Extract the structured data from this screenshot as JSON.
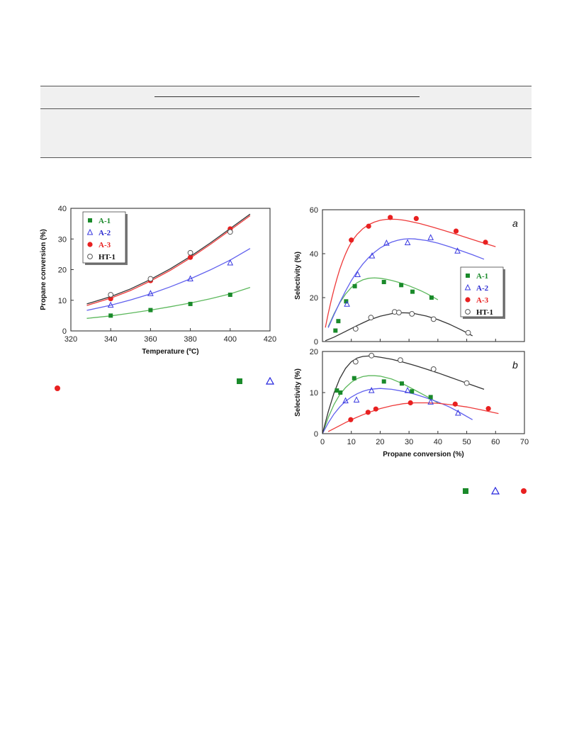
{
  "chart_data": [
    {
      "id": "conv-vs-temp",
      "type": "scatter",
      "xlabel": "Temperature (ºC)",
      "ylabel": "Propane conversion (%)",
      "xlim": [
        320,
        420
      ],
      "ylim": [
        0,
        40
      ],
      "xticks": [
        320,
        340,
        360,
        380,
        400,
        420
      ],
      "yticks": [
        0,
        10,
        20,
        30,
        40
      ],
      "legend_position": "top-left",
      "grid": false,
      "series": [
        {
          "name": "A-1",
          "color": "#1a8a2a",
          "marker": "square",
          "x": [
            340,
            360,
            380,
            400
          ],
          "y": [
            5,
            6.8,
            8.8,
            11.8
          ],
          "fit": {
            "x": [
              328,
              340,
              350,
              360,
              370,
              380,
              390,
              400,
              410
            ],
            "y": [
              4.1,
              4.9,
              5.8,
              6.8,
              7.9,
              9.1,
              10.5,
              12.1,
              14.2
            ]
          }
        },
        {
          "name": "A-2",
          "color": "#3a3ae0",
          "marker": "triangle-open",
          "x": [
            340,
            360,
            380,
            400
          ],
          "y": [
            8.4,
            12.2,
            17,
            22.2
          ],
          "fit": {
            "x": [
              328,
              340,
              350,
              360,
              370,
              380,
              390,
              400,
              410
            ],
            "y": [
              6.7,
              8.4,
              10.1,
              12.1,
              14.4,
              17.0,
              19.9,
              23.1,
              26.9
            ]
          }
        },
        {
          "name": "A-3",
          "color": "#e82020",
          "marker": "circle-filled",
          "x": [
            340,
            360,
            380,
            400
          ],
          "y": [
            10.5,
            16.4,
            24,
            33.3
          ],
          "fit": {
            "x": [
              328,
              340,
              350,
              360,
              370,
              380,
              390,
              400,
              410
            ],
            "y": [
              8.3,
              10.7,
              13.2,
              16.3,
              19.8,
              23.8,
              28.2,
              32.9,
              37.6
            ]
          }
        },
        {
          "name": "HT-1",
          "color": "#555555",
          "marker": "circle-open",
          "x": [
            340,
            360,
            380,
            400
          ],
          "y": [
            11.8,
            17,
            25.5,
            32.3
          ],
          "fit": {
            "x": [
              328,
              340,
              350,
              360,
              370,
              380,
              390,
              400,
              410
            ],
            "y": [
              8.8,
              11.2,
              13.7,
              16.8,
              20.3,
              24.3,
              28.7,
              33.4,
              38.1
            ]
          }
        }
      ]
    },
    {
      "id": "selectivity-a",
      "type": "scatter",
      "panel_label": "a",
      "xlabel": "",
      "ylabel": "Selectivity (%)",
      "xlim": [
        0,
        70
      ],
      "ylim": [
        0,
        60
      ],
      "yticks": [
        0,
        20,
        40,
        60
      ],
      "legend_position": "right",
      "grid": false,
      "series": [
        {
          "name": "A-1",
          "color": "#1a8a2a",
          "marker": "square",
          "x": [
            4.5,
            5.5,
            8.2,
            11.2,
            21.3,
            27.3,
            31.2,
            37.8
          ],
          "y": [
            5,
            9.3,
            18.3,
            25.2,
            27.1,
            25.7,
            22.7,
            20
          ],
          "fit": {
            "x": [
              2,
              4,
              6,
              8,
              10,
              12,
              14,
              16,
              18,
              20,
              22,
              24,
              26,
              28,
              30,
              32,
              34,
              36,
              38,
              40
            ],
            "y": [
              6.7,
              12.6,
              17.6,
              21.6,
              24.6,
              26.8,
              28.1,
              28.8,
              29,
              28.8,
              28.4,
              27.8,
              27.1,
              26.3,
              25.4,
              24.3,
              23.2,
              21.9,
              20.5,
              19
            ]
          }
        },
        {
          "name": "A-2",
          "color": "#3a3ae0",
          "marker": "triangle-open",
          "x": [
            8.5,
            12.2,
            17.2,
            22.2,
            29.5,
            37.5,
            46.8
          ],
          "y": [
            17,
            30.5,
            39,
            44.8,
            45,
            47.3,
            41.2
          ],
          "fit": {
            "x": [
              2,
              4,
              6,
              8,
              10,
              12,
              14,
              16,
              18,
              20,
              22,
              24,
              26,
              28,
              30,
              32,
              36,
              40,
              44,
              48,
              52,
              56
            ],
            "y": [
              6.3,
              12.2,
              17.8,
              23,
              27.7,
              31.8,
              35.3,
              38.2,
              40.6,
              42.6,
              44.1,
              45.3,
              46.1,
              46.6,
              46.8,
              46.7,
              46,
              44.8,
              43.2,
              41.4,
              39.5,
              37.5
            ]
          }
        },
        {
          "name": "A-3",
          "color": "#e82020",
          "marker": "circle-filled",
          "x": [
            10,
            16,
            23.5,
            32.5,
            46.3,
            56.5
          ],
          "y": [
            46.2,
            52.5,
            56.5,
            56,
            50.3,
            45.2
          ],
          "fit": {
            "x": [
              1,
              2,
              3,
              4,
              5,
              6,
              7,
              8,
              9,
              10,
              11,
              12,
              14,
              16,
              18,
              20,
              22,
              24,
              26,
              28,
              30,
              34,
              38,
              42,
              46,
              50,
              54,
              58,
              60
            ],
            "y": [
              6.4,
              12.7,
              18.5,
              23.8,
              28.6,
              32.9,
              36.6,
              39.9,
              42.7,
              45.1,
              47.1,
              48.8,
              51.4,
              53.2,
              54.4,
              55.2,
              55.6,
              55.7,
              55.6,
              55.3,
              54.8,
              53.6,
              52.2,
              50.6,
              49,
              47.3,
              45.6,
              44,
              43.2
            ]
          }
        },
        {
          "name": "HT-1",
          "color": "#555555",
          "marker": "circle-open",
          "x": [
            11.5,
            16.8,
            25,
            26.5,
            31,
            38.5,
            50.5
          ],
          "y": [
            5.8,
            10.9,
            13.5,
            13.2,
            12.6,
            10.2,
            4
          ],
          "fit": {
            "x": [
              1,
              4,
              8,
              12,
              16,
              20,
              24,
              26,
              28,
              30,
              32,
              36,
              40,
              44,
              48,
              50,
              52
            ],
            "y": [
              0.4,
              2,
              4.6,
              7.3,
              9.7,
              11.5,
              12.7,
              13,
              13.1,
              13,
              12.7,
              11.6,
              10,
              7.9,
              5.4,
              4,
              2.6
            ]
          }
        }
      ]
    },
    {
      "id": "selectivity-b",
      "type": "scatter",
      "panel_label": "b",
      "xlabel": "Propane conversion (%)",
      "ylabel": "Selectivity (%)",
      "xlim": [
        0,
        70
      ],
      "ylim": [
        0,
        20
      ],
      "xticks": [
        0,
        10,
        20,
        30,
        40,
        50,
        60,
        70
      ],
      "yticks": [
        0,
        10,
        20
      ],
      "grid": false,
      "series": [
        {
          "name": "A-1",
          "color": "#1a8a2a",
          "marker": "square",
          "x": [
            5,
            6.2,
            11,
            21.3,
            27.5,
            31,
            37.5
          ],
          "y": [
            10.5,
            10,
            13.5,
            12.7,
            12.2,
            10.3,
            8.9
          ],
          "fit": {
            "x": [
              0,
              2,
              4,
              6,
              8,
              10,
              12,
              14,
              16,
              18,
              20,
              24,
              28,
              32,
              36,
              40
            ],
            "y": [
              0,
              3.9,
              7.1,
              9.5,
              11.2,
              12.5,
              13.4,
              13.9,
              14.1,
              14.1,
              14,
              13.3,
              12.1,
              10.6,
              9.1,
              7.5
            ]
          }
        },
        {
          "name": "A-2",
          "color": "#3a3ae0",
          "marker": "triangle-open",
          "x": [
            8,
            11.8,
            17,
            29.5,
            37.5,
            47
          ],
          "y": [
            8,
            8.2,
            10.5,
            10.5,
            7.7,
            5
          ],
          "fit": {
            "x": [
              0,
              2,
              4,
              6,
              8,
              10,
              12,
              14,
              16,
              18,
              20,
              24,
              28,
              32,
              36,
              40,
              44,
              48,
              52
            ],
            "y": [
              0,
              2.6,
              4.8,
              6.5,
              7.9,
              8.9,
              9.7,
              10.3,
              10.7,
              10.9,
              11,
              10.8,
              10.3,
              9.6,
              8.7,
              7.7,
              6.5,
              5,
              3.4
            ]
          }
        },
        {
          "name": "A-3",
          "color": "#e82020",
          "marker": "circle-filled",
          "x": [
            9.8,
            15.8,
            18.5,
            30.5,
            46,
            57.5
          ],
          "y": [
            3.4,
            5.2,
            6,
            7.5,
            7.2,
            6.1
          ],
          "fit": {
            "x": [
              2,
              5,
              8,
              11,
              14,
              17,
              20,
              24,
              28,
              32,
              36,
              40,
              45,
              50,
              55,
              61
            ],
            "y": [
              0.5,
              1.6,
              2.7,
              3.7,
              4.6,
              5.4,
              6.1,
              6.8,
              7.3,
              7.5,
              7.5,
              7.4,
              7,
              6.5,
              5.8,
              4.9
            ]
          }
        },
        {
          "name": "HT-1",
          "color": "#555555",
          "marker": "circle-open",
          "x": [
            11.5,
            17,
            27,
            38.5,
            50
          ],
          "y": [
            17.5,
            19,
            17.9,
            15.7,
            12.3
          ],
          "fit": {
            "x": [
              0,
              2,
              4,
              6,
              8,
              10,
              12,
              14,
              16,
              18,
              20,
              24,
              28,
              32,
              36,
              40,
              44,
              48,
              52,
              56
            ],
            "y": [
              0,
              5.3,
              9.9,
              13.4,
              15.9,
              17.5,
              18.4,
              18.8,
              18.9,
              18.8,
              18.6,
              18.1,
              17.4,
              16.6,
              15.7,
              14.8,
              13.8,
              12.8,
              11.8,
              10.8
            ]
          }
        }
      ]
    }
  ],
  "caption_markers": [
    {
      "name": "A-1-marker",
      "marker": "square",
      "color": "#1a8a2a"
    },
    {
      "name": "A-2-marker",
      "marker": "triangle-open",
      "color": "#3a3ae0"
    },
    {
      "name": "A-3-marker",
      "marker": "circle-filled",
      "color": "#e82020"
    }
  ]
}
